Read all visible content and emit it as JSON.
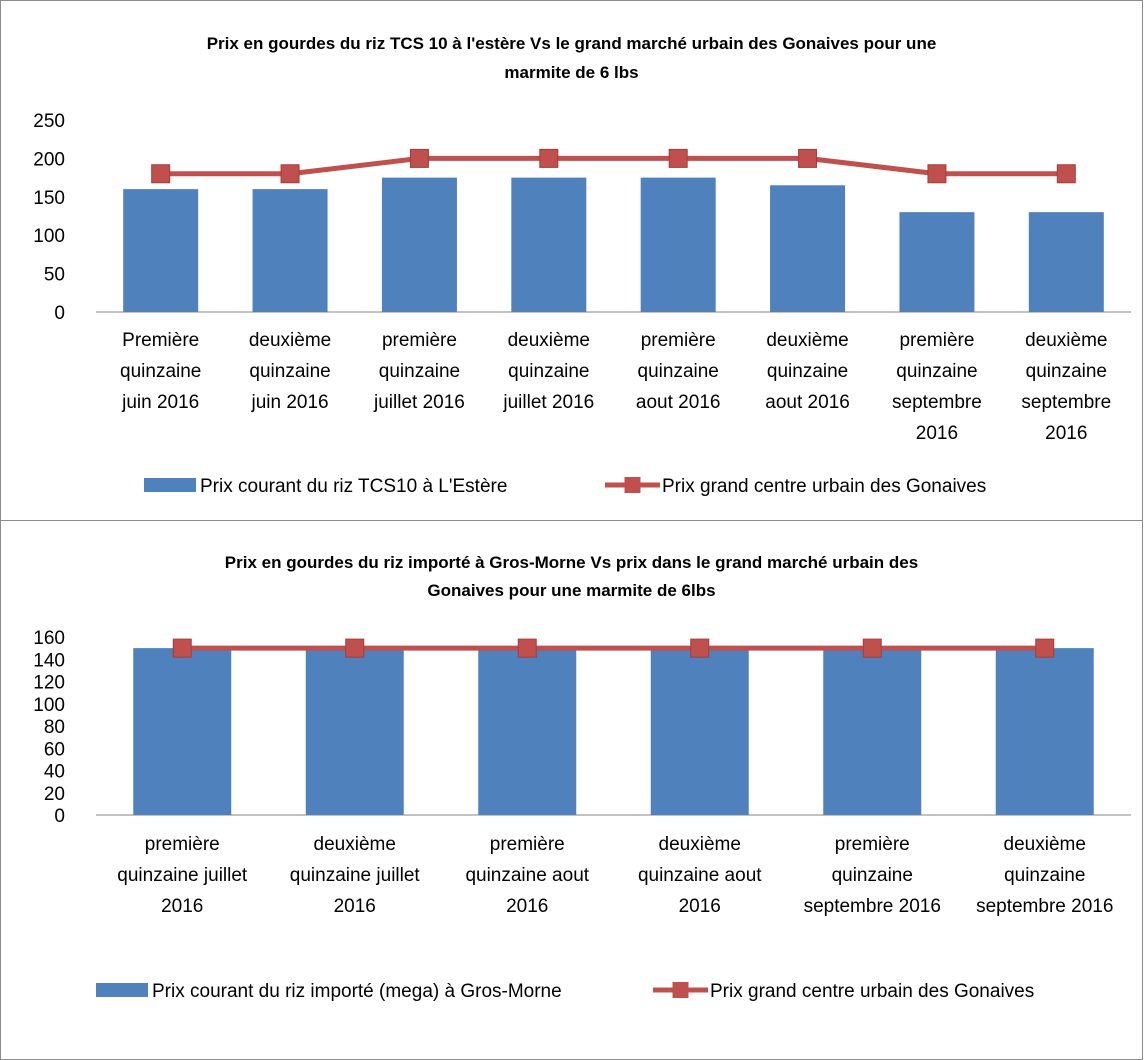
{
  "chart_data": [
    {
      "type": "bar",
      "title_lines": [
        "Prix en gourdes du riz TCS 10 à l'estère Vs le grand marché urbain des Gonaives pour une",
        "marmite de 6 lbs"
      ],
      "categories": [
        [
          "Première",
          "quinzaine",
          "juin 2016"
        ],
        [
          "deuxième",
          "quinzaine",
          "juin 2016"
        ],
        [
          "première",
          "quinzaine",
          "juillet 2016"
        ],
        [
          "deuxième",
          "quinzaine",
          "juillet 2016"
        ],
        [
          "première",
          "quinzaine",
          "aout 2016"
        ],
        [
          "deuxième",
          "quinzaine",
          "aout 2016"
        ],
        [
          "première",
          "quinzaine",
          "septembre",
          "2016"
        ],
        [
          "deuxième",
          "quinzaine",
          "septembre",
          "2016"
        ]
      ],
      "series": [
        {
          "name": "Prix courant du riz TCS10 à L'Estère",
          "kind": "bar",
          "color": "#4f81bd",
          "values": [
            160,
            160,
            175,
            175,
            175,
            165,
            130,
            130
          ]
        },
        {
          "name": "Prix grand centre urbain des Gonaives",
          "kind": "line",
          "color": "#c0504d",
          "values": [
            180,
            180,
            200,
            200,
            200,
            200,
            180,
            180
          ]
        }
      ],
      "ylim": [
        0,
        250
      ],
      "yticks": [
        0,
        50,
        100,
        150,
        200,
        250
      ],
      "grid": false,
      "legend": "bottom"
    },
    {
      "type": "bar",
      "title_lines": [
        "Prix en gourdes du riz importé à Gros-Morne  Vs prix dans le grand marché urbain des",
        "Gonaives pour une marmite de 6lbs"
      ],
      "categories": [
        [
          "première",
          "quinzaine juillet",
          "2016"
        ],
        [
          "deuxième",
          "quinzaine juillet",
          "2016"
        ],
        [
          "première",
          "quinzaine aout",
          "2016"
        ],
        [
          "deuxième",
          "quinzaine aout",
          "2016"
        ],
        [
          "première",
          "quinzaine",
          "septembre 2016"
        ],
        [
          "deuxième",
          "quinzaine",
          "septembre 2016"
        ]
      ],
      "series": [
        {
          "name": "Prix courant du riz importé (mega) à Gros-Morne",
          "kind": "bar",
          "color": "#4f81bd",
          "values": [
            150,
            150,
            150,
            150,
            150,
            150
          ]
        },
        {
          "name": "Prix grand centre urbain des Gonaives",
          "kind": "line",
          "color": "#c0504d",
          "values": [
            150,
            150,
            150,
            150,
            150,
            150
          ]
        }
      ],
      "ylim": [
        0,
        160
      ],
      "yticks": [
        0,
        20,
        40,
        60,
        80,
        100,
        120,
        140,
        160
      ],
      "grid": false,
      "legend": "bottom"
    }
  ]
}
